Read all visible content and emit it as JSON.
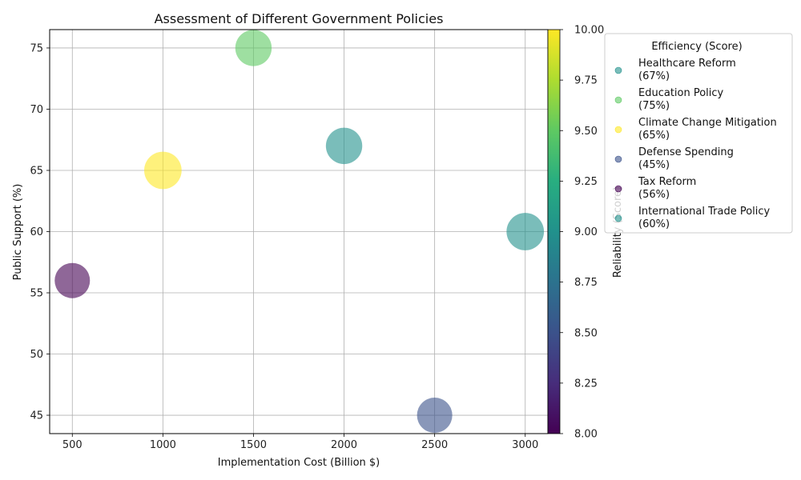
{
  "chart_data": {
    "type": "scatter",
    "title": "Assessment of Different Government Policies",
    "xlabel": "Implementation Cost (Billion $)",
    "ylabel": "Public Support (%)",
    "xlim": [
      375,
      3125
    ],
    "ylim": [
      43.5,
      76.5
    ],
    "xticks": [
      500,
      1000,
      1500,
      2000,
      2500,
      3000
    ],
    "yticks": [
      45,
      50,
      55,
      60,
      65,
      70,
      75
    ],
    "grid": true,
    "colorbar": {
      "label": "Reliability (Score)",
      "range": [
        8.0,
        10.0
      ],
      "ticks": [
        "8.00",
        "8.25",
        "8.50",
        "8.75",
        "9.00",
        "9.25",
        "9.50",
        "9.75",
        "10.00"
      ],
      "colormap": "viridis"
    },
    "size_encoding": "Efficiency (Score)",
    "legend": {
      "title": "Efficiency (Score)",
      "placement": "outside-right",
      "entries": [
        {
          "line1": "Healthcare Reform",
          "line2": "(67%)"
        },
        {
          "line1": "Education Policy",
          "line2": "(75%)"
        },
        {
          "line1": "Climate Change Mitigation",
          "line2": "(65%)"
        },
        {
          "line1": "Defense Spending",
          "line2": "(45%)"
        },
        {
          "line1": "Tax Reform",
          "line2": "(56%)"
        },
        {
          "line1": "International Trade Policy",
          "line2": "(60%)"
        }
      ]
    },
    "points": [
      {
        "name": "Healthcare Reform",
        "x": 2000,
        "y": 67,
        "reliability": 9.0,
        "efficiency": 8.5
      },
      {
        "name": "Education Policy",
        "x": 1500,
        "y": 75,
        "reliability": 9.5,
        "efficiency": 8.5
      },
      {
        "name": "Climate Change Mitigation",
        "x": 1000,
        "y": 65,
        "reliability": 10.0,
        "efficiency": 9.0
      },
      {
        "name": "Defense Spending",
        "x": 2500,
        "y": 45,
        "reliability": 8.5,
        "efficiency": 8.0
      },
      {
        "name": "Tax Reform",
        "x": 500,
        "y": 56,
        "reliability": 8.0,
        "efficiency": 8.0
      },
      {
        "name": "International Trade Policy",
        "x": 3000,
        "y": 60,
        "reliability": 9.0,
        "efficiency": 9.0
      }
    ]
  }
}
